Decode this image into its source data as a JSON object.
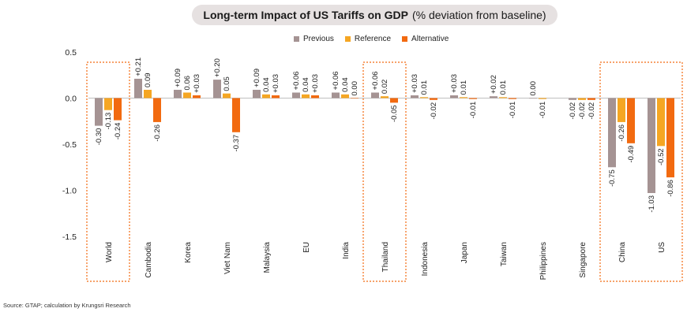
{
  "title_bold": "Long-term Impact of US Tariffs on GDP",
  "title_sub": "(% deviation from baseline)",
  "source": "Source: GTAP; calculation by Krungsri Research",
  "chart_data": {
    "type": "bar",
    "title": "Long-term Impact of US Tariffs on GDP (% deviation from baseline)",
    "ylim": [
      -1.5,
      0.5
    ],
    "yticks": [
      0.5,
      0.0,
      -0.5,
      -1.0,
      -1.5
    ],
    "ytick_labels": [
      "0.5",
      "0.0",
      "-0.5",
      "-1.0",
      "-1.5"
    ],
    "legend_position": "top-center",
    "categories": [
      "World",
      "Cambodia",
      "Korea",
      "Viet Nam",
      "Malaysia",
      "EU",
      "India",
      "Thailand",
      "Indonesia",
      "Japan",
      "Taiwan",
      "Philippines",
      "Singapore",
      "China",
      "US"
    ],
    "highlighted_categories": [
      "World",
      "Thailand",
      "China",
      "US"
    ],
    "series": [
      {
        "name": "Previous",
        "color": "#a59393",
        "values": [
          -0.3,
          0.21,
          0.09,
          0.2,
          0.09,
          0.06,
          0.06,
          0.06,
          0.03,
          0.03,
          0.02,
          0.0,
          -0.02,
          -0.75,
          -1.03
        ],
        "labels": [
          "-0.30",
          "+0.21",
          "+0.09",
          "+0.20",
          "+0.09",
          "+0.06",
          "+0.06",
          "+0.06",
          "+0.03",
          "+0.03",
          "+0.02",
          "0.00",
          "-0.02",
          "-0.75",
          "-1.03"
        ]
      },
      {
        "name": "Reference",
        "color": "#f5a623",
        "values": [
          -0.13,
          0.09,
          0.06,
          0.05,
          0.04,
          0.04,
          0.04,
          0.02,
          0.01,
          0.01,
          0.01,
          -0.01,
          -0.02,
          -0.26,
          -0.52
        ],
        "labels": [
          "-0.13",
          "0.09",
          "0.06",
          "0.05",
          "0.04",
          "0.04",
          "0.04",
          "0.02",
          "0.01",
          "0.01",
          "0.01",
          "-0.01",
          "-0.02",
          "-0.26",
          "-0.52"
        ]
      },
      {
        "name": "Alternative",
        "color": "#f26a10",
        "values": [
          -0.24,
          -0.26,
          0.03,
          -0.37,
          0.03,
          0.03,
          0.0,
          -0.05,
          -0.02,
          -0.01,
          -0.01,
          null,
          -0.02,
          -0.49,
          -0.86
        ],
        "labels": [
          "-0.24",
          "-0.26",
          "+0.03",
          "-0.37",
          "+0.03",
          "+0.03",
          "0.00",
          "-0.05",
          "-0.02",
          "-0.01",
          "-0.01",
          "",
          "-0.02",
          "-0.49",
          "-0.86"
        ]
      }
    ]
  },
  "colors": {
    "highlight_box": "#f26a10",
    "axis_line": "#bfbfbf"
  }
}
